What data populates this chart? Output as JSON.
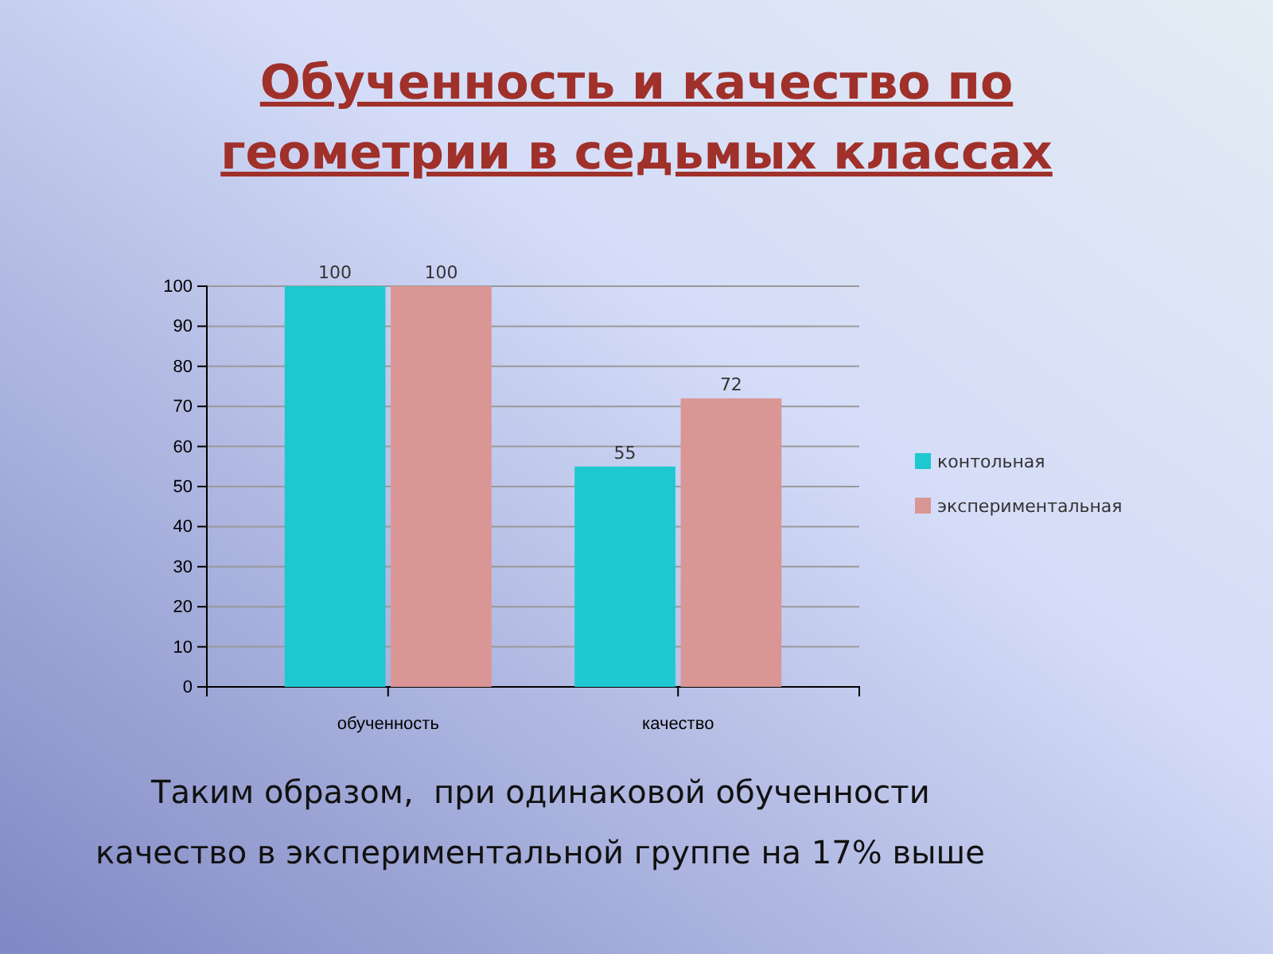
{
  "chart_data": {
    "type": "bar",
    "title": "Обученность и качество по геометрии в седьмых классах",
    "categories": [
      "обученность",
      "качество"
    ],
    "series": [
      {
        "name": "контольная",
        "color": "#1ec8d0",
        "values": [
          100,
          55
        ]
      },
      {
        "name": "экспериментальная",
        "color": "#d99694",
        "values": [
          100,
          72
        ]
      }
    ],
    "ylim": [
      0,
      100
    ],
    "yticks": [
      0,
      10,
      20,
      30,
      40,
      50,
      60,
      70,
      80,
      90,
      100
    ],
    "grid": "y",
    "legend": "right",
    "data_labels": true,
    "annotations": [
      "Таким образом,  при одинаковой обученности качество в экспериментальной группе на 17% выше"
    ]
  }
}
